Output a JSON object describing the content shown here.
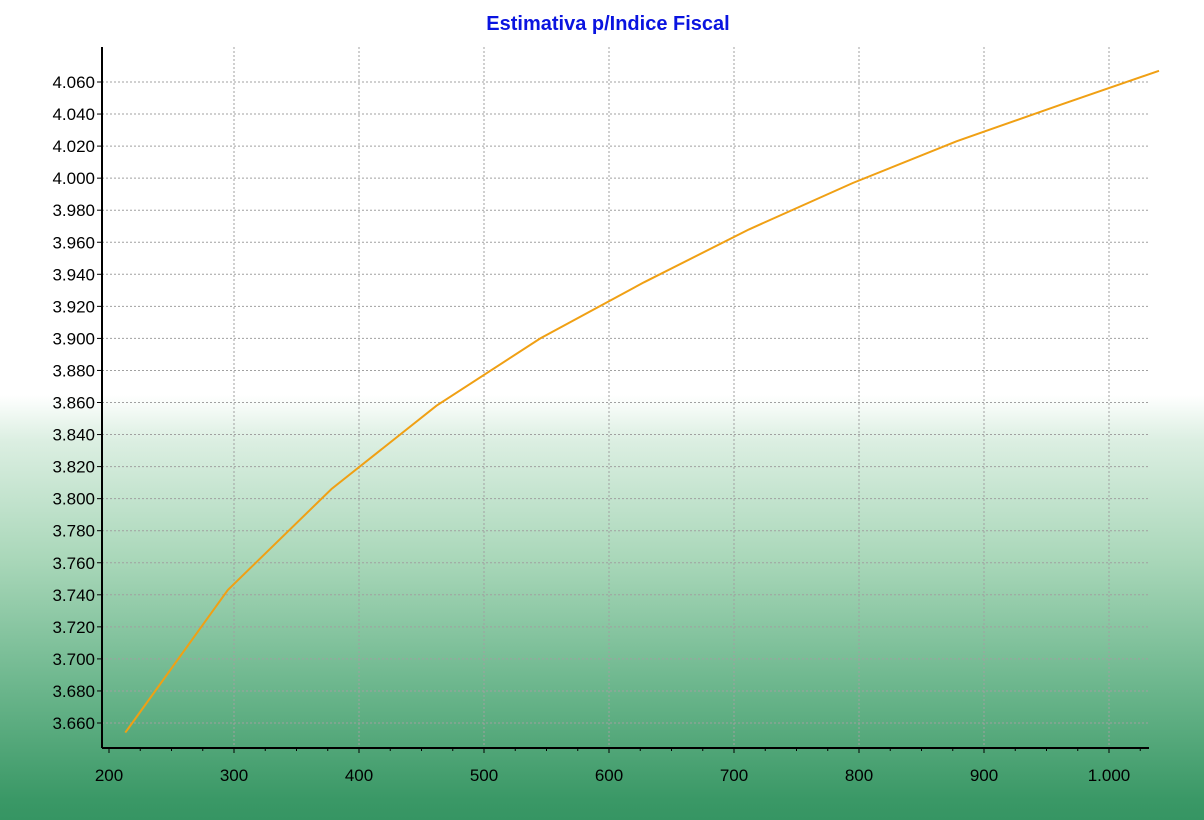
{
  "chart_data": {
    "type": "line",
    "title": "Estimativa p/Indice Fiscal",
    "xlabel": "",
    "ylabel": "",
    "xlim": [
      200,
      1050
    ],
    "ylim": [
      3.64,
      4.07
    ],
    "x_ticks": [
      200,
      300,
      400,
      500,
      600,
      700,
      800,
      900,
      1000
    ],
    "x_tick_labels": [
      "200",
      "300",
      "400",
      "500",
      "600",
      "700",
      "800",
      "900",
      "1.000"
    ],
    "y_ticks": [
      3.66,
      3.68,
      3.7,
      3.72,
      3.74,
      3.76,
      3.78,
      3.8,
      3.82,
      3.84,
      3.86,
      3.88,
      3.9,
      3.92,
      3.94,
      3.96,
      3.98,
      4.0,
      4.02,
      4.04,
      4.06
    ],
    "y_tick_labels": [
      "3.660",
      "3.680",
      "3.700",
      "3.720",
      "3.740",
      "3.760",
      "3.780",
      "3.800",
      "3.820",
      "3.840",
      "3.860",
      "3.880",
      "3.900",
      "3.920",
      "3.940",
      "3.960",
      "3.980",
      "4.000",
      "4.020",
      "4.040",
      "4.060"
    ],
    "grid": true,
    "series": [
      {
        "x": [
          213,
          295,
          378,
          462,
          545,
          628,
          712,
          795,
          878,
          962,
          1040
        ],
        "y": [
          3.654,
          3.743,
          3.806,
          3.858,
          3.9,
          3.935,
          3.968,
          3.997,
          4.023,
          4.046,
          4.067
        ],
        "color": "#f0a014"
      }
    ]
  }
}
